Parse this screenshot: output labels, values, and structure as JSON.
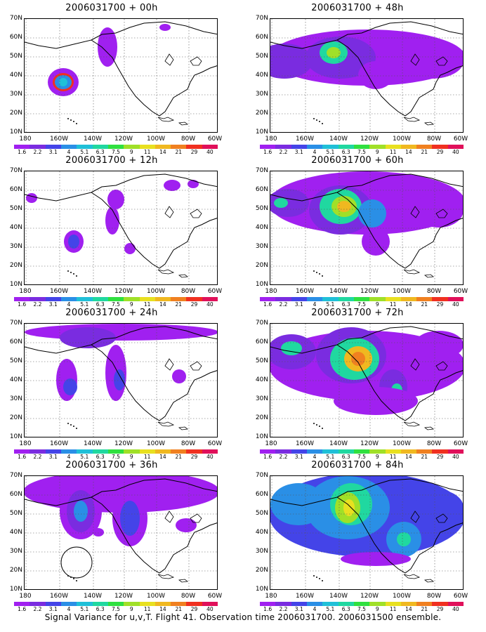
{
  "panels": [
    {
      "title": "2006031700 + 00h"
    },
    {
      "title": "2006031700 + 48h"
    },
    {
      "title": "2006031700 + 12h"
    },
    {
      "title": "2006031700 + 60h"
    },
    {
      "title": "2006031700 + 24h"
    },
    {
      "title": "2006031700 + 72h"
    },
    {
      "title": "2006031700 + 36h"
    },
    {
      "title": "2006031700 + 84h"
    }
  ],
  "lat_labels": [
    "70N",
    "60N",
    "50N",
    "40N",
    "30N",
    "20N",
    "10N"
  ],
  "lon_labels": [
    "180",
    "160W",
    "140W",
    "120W",
    "100W",
    "80W",
    "60W"
  ],
  "colorbar": {
    "labels": [
      "1.6",
      "2.2",
      "3.1",
      "4",
      "5.1",
      "6.3",
      "7.5",
      "9",
      "11",
      "14",
      "21",
      "29",
      "40"
    ],
    "colors": [
      "#a020f0",
      "#7a2ce0",
      "#4444e8",
      "#2a8fe6",
      "#20c0d8",
      "#20d8a0",
      "#30e040",
      "#a0e028",
      "#e8e020",
      "#f0b820",
      "#f08020",
      "#f03020",
      "#e0105a"
    ]
  },
  "footer": "Signal Variance for u,v,T. Flight 41. Observation time 2006031700. 2006031500 ensemble."
}
